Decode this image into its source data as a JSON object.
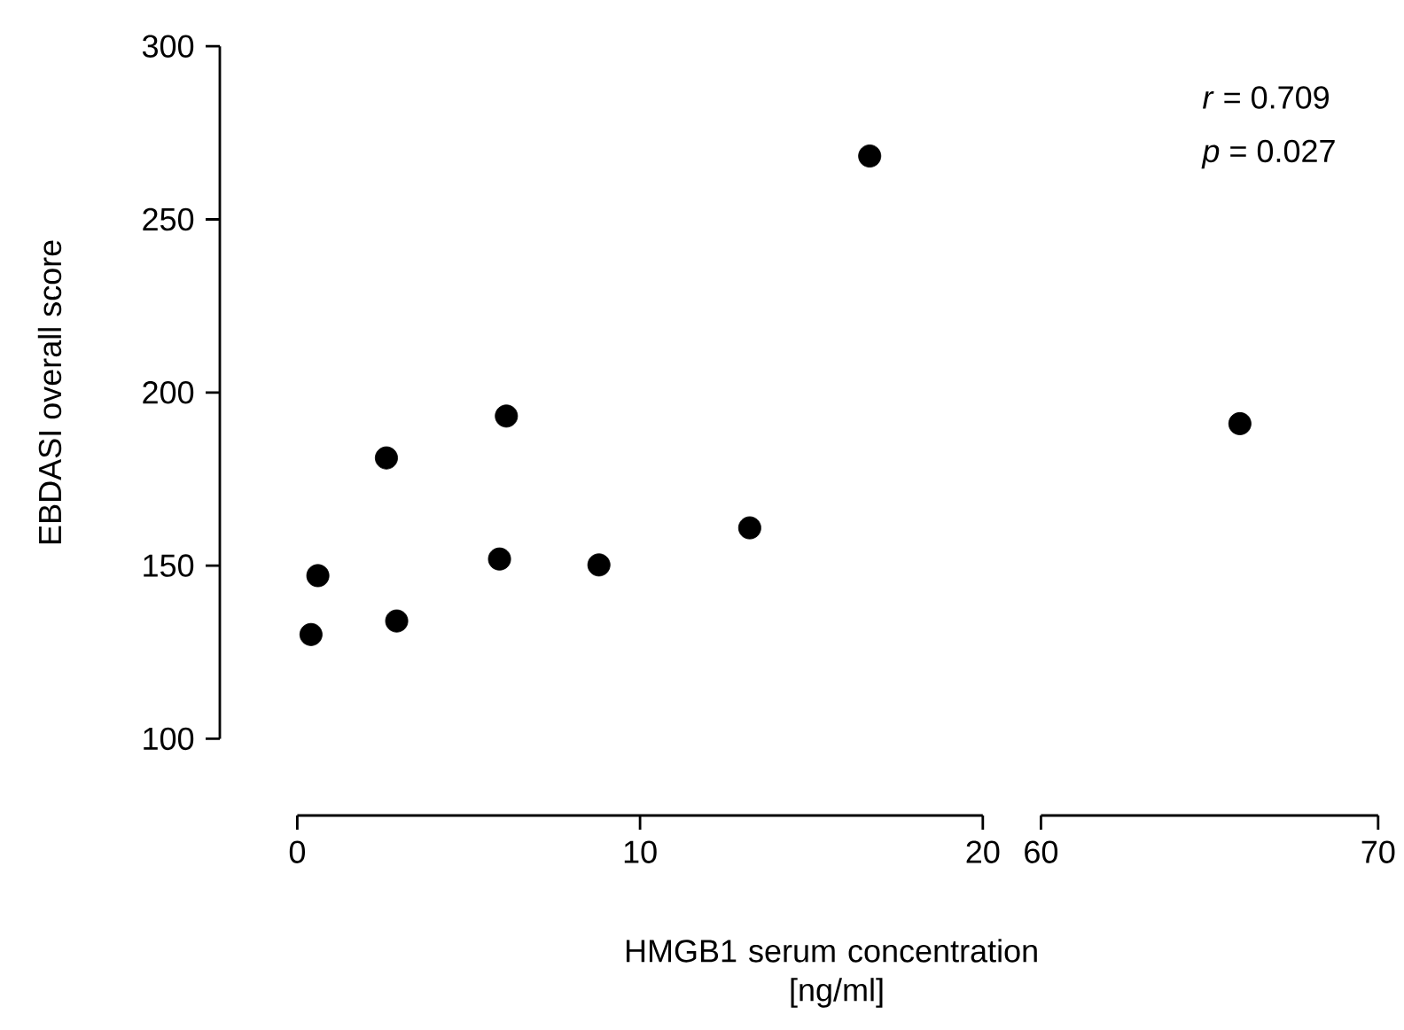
{
  "chart_data": [
    {
      "type": "scatter",
      "xlabel": "HMGB1 serum concentration [ng/ml]",
      "ylabel": "EBDASI overall score",
      "x": [
        0.4,
        0.6,
        2.6,
        2.9,
        6.1,
        5.9,
        8.8,
        13.2,
        16.7
      ],
      "values": [
        130.1,
        147.1,
        181.1,
        134.0,
        193.2,
        151.9,
        150.2,
        160.9,
        268.3
      ],
      "color": "#000000",
      "marker": "circle",
      "xlim": [
        0,
        20
      ],
      "xticks": [
        0,
        10,
        20
      ],
      "ylim": [
        100,
        300
      ],
      "yticks": [
        100,
        150,
        200,
        250,
        300
      ]
    },
    {
      "type": "scatter",
      "x": [
        65.9
      ],
      "values": [
        191.0
      ],
      "color": "#000000",
      "marker": "circle",
      "xlim": [
        60,
        70
      ],
      "xticks": [
        60,
        70
      ],
      "ylim": [
        100,
        300
      ],
      "tick_labels": "x",
      "annotations": [
        "*r* = 0.709",
        "*p* = 0.027"
      ]
    }
  ]
}
